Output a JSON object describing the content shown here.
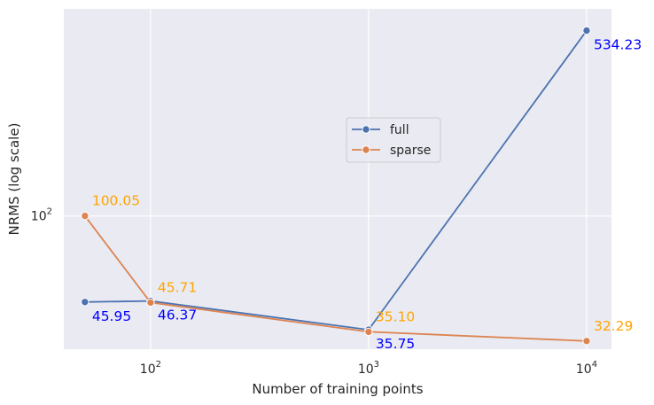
{
  "chart_data": {
    "type": "line",
    "xlabel": "Number of training points",
    "ylabel": "NRMS (log scale)",
    "xscale": "log",
    "yscale": "log",
    "xlim": [
      40,
      13000
    ],
    "ylim": [
      30,
      650
    ],
    "x_ticks": [
      {
        "value": 100,
        "base": "10",
        "exp": "2"
      },
      {
        "value": 1000,
        "base": "10",
        "exp": "3"
      },
      {
        "value": 10000,
        "base": "10",
        "exp": "4"
      }
    ],
    "y_ticks": [
      {
        "value": 100,
        "base": "10",
        "exp": "2"
      }
    ],
    "grid": true,
    "legend_position": "center-right",
    "series": [
      {
        "name": "full",
        "color": "#4c72b0",
        "label_color": "#0000ff",
        "x": [
          50,
          100,
          1000,
          10000
        ],
        "y": [
          45.95,
          46.37,
          35.75,
          534.23
        ],
        "labels": [
          "45.95",
          "46.37",
          "35.75",
          "534.23"
        ],
        "label_position": "below"
      },
      {
        "name": "sparse",
        "color": "#dd8452",
        "label_color": "#ffa500",
        "x": [
          50,
          100,
          1000,
          10000
        ],
        "y": [
          100.05,
          45.71,
          35.1,
          32.29
        ],
        "labels": [
          "100.05",
          "45.71",
          "35.10",
          "32.29"
        ],
        "label_position": "above"
      }
    ]
  }
}
